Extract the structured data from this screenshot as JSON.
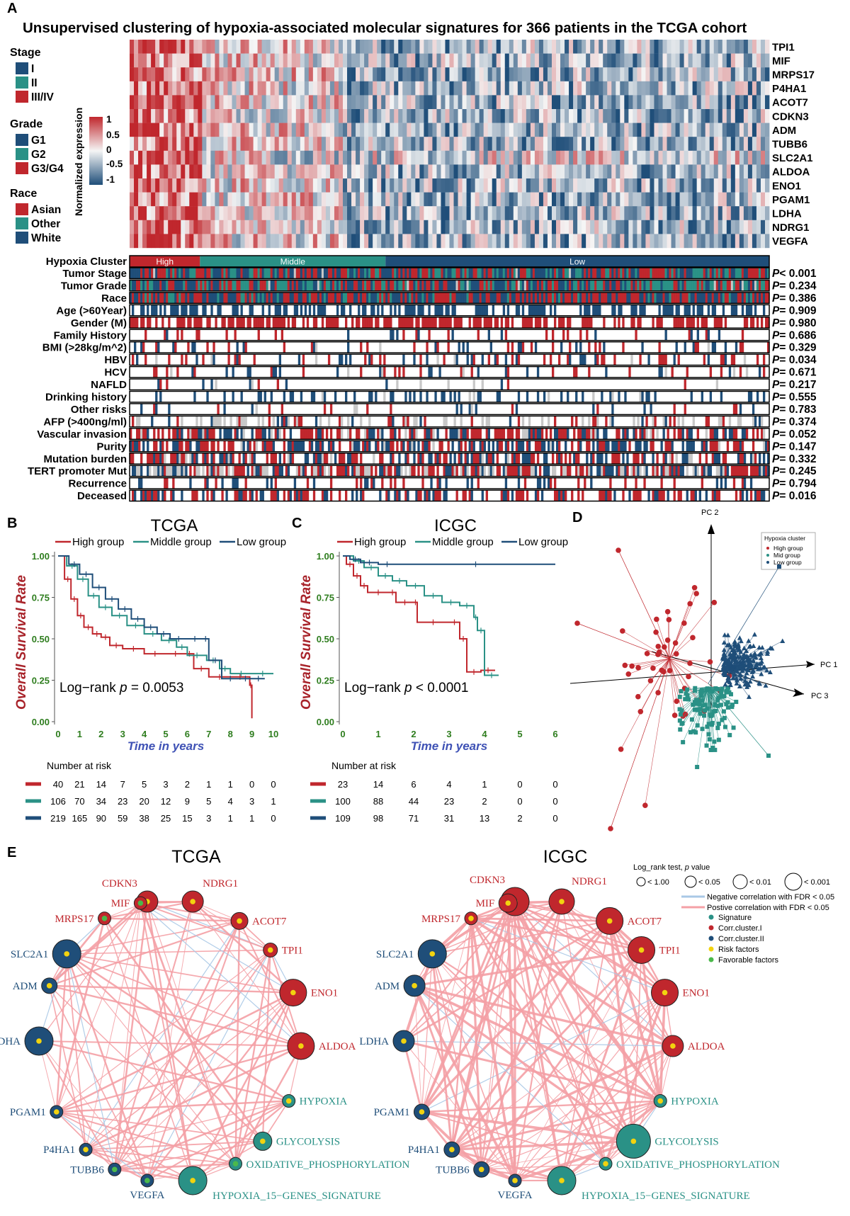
{
  "colors": {
    "red": "#c0272d",
    "teal": "#2a9186",
    "blue": "#1f4e79",
    "gray": "#c8c8c8",
    "pink": "#f4a0a6",
    "lightblue": "#a9c8e6",
    "yellow": "#f2d30f",
    "green": "#4bb94b",
    "dgreen": "#2e7d1e",
    "purple": "#4a4ab0"
  },
  "panel_a": {
    "letter": "A",
    "title": "Unsupervised clustering of  hypoxia-associated molecular signatures for 366 patients in the TCGA cohort",
    "genes": [
      "TPI1",
      "MIF",
      "MRPS17",
      "P4HA1",
      "ACOT7",
      "CDKN3",
      "ADM",
      "TUBB6",
      "SLC2A1",
      "ALDOA",
      "ENO1",
      "PGAM1",
      "LDHA",
      "NDRG1",
      "VEGFA"
    ],
    "legend_stage": {
      "title": "Stage",
      "items": [
        "I",
        "II",
        "III/IV"
      ]
    },
    "legend_grade": {
      "title": "Grade",
      "items": [
        "G1",
        "G2",
        "G3/G4"
      ]
    },
    "legend_race": {
      "title": "Race",
      "items": [
        "Asian",
        "Other",
        "White"
      ]
    },
    "colorbar": {
      "label": "Normalized expression",
      "ticks": [
        "1",
        "0.5",
        "0",
        "-0.5",
        "-1"
      ]
    },
    "cluster_row": {
      "label": "Hypoxia Cluster",
      "segments": [
        "High",
        "Middle",
        "Low"
      ],
      "fractions": [
        0.11,
        0.29,
        0.6
      ]
    },
    "clinical_rows": [
      {
        "label": "Tumor Stage",
        "p_prefix": "P",
        "p_value": "< 0.001"
      },
      {
        "label": "Tumor Grade",
        "p_prefix": "P",
        "p_value": "= 0.234"
      },
      {
        "label": "Race",
        "p_prefix": "P",
        "p_value": "= 0.386"
      },
      {
        "label": "Age (>60Year)",
        "p_prefix": "P",
        "p_value": "= 0.909"
      },
      {
        "label": "Gender (M)",
        "p_prefix": "P",
        "p_value": "= 0.980"
      },
      {
        "label": "Family History",
        "p_prefix": "P",
        "p_value": "= 0.686"
      },
      {
        "label": "BMI (>28kg/m^2)",
        "p_prefix": "P",
        "p_value": "= 0.329"
      },
      {
        "label": "HBV",
        "p_prefix": "P",
        "p_value": "= 0.034"
      },
      {
        "label": "HCV",
        "p_prefix": "P",
        "p_value": "= 0.671"
      },
      {
        "label": "NAFLD",
        "p_prefix": "P",
        "p_value": "= 0.217"
      },
      {
        "label": "Drinking history",
        "p_prefix": "P",
        "p_value": "= 0.555"
      },
      {
        "label": "Other risks",
        "p_prefix": "P",
        "p_value": "= 0.783"
      },
      {
        "label": "AFP (>400ng/ml)",
        "p_prefix": "P",
        "p_value": "= 0.374"
      },
      {
        "label": "Vascular invasion",
        "p_prefix": "P",
        "p_value": "= 0.052"
      },
      {
        "label": "Purity",
        "p_prefix": "P",
        "p_value": "= 0.147"
      },
      {
        "label": "Mutation burden",
        "p_prefix": "P",
        "p_value": "= 0.332"
      },
      {
        "label": "TERT promoter Mut",
        "p_prefix": "P",
        "p_value": "= 0.245"
      },
      {
        "label": "Recurrence",
        "p_prefix": "P",
        "p_value": "= 0.794"
      },
      {
        "label": "Deceased",
        "p_prefix": "P",
        "p_value": "= 0.016"
      }
    ]
  },
  "chart_data": [
    {
      "type": "heatmap",
      "panel": "A",
      "title": "Unsupervised clustering of  hypoxia-associated molecular signatures for 366 patients in the TCGA cohort",
      "rows": [
        "TPI1",
        "MIF",
        "MRPS17",
        "P4HA1",
        "ACOT7",
        "CDKN3",
        "ADM",
        "TUBB6",
        "SLC2A1",
        "ALDOA",
        "ENO1",
        "PGAM1",
        "LDHA",
        "NDRG1",
        "VEGFA"
      ],
      "n_patients": 366,
      "value_range": [
        -1,
        1
      ],
      "clusters": [
        "High",
        "Middle",
        "Low"
      ]
    },
    {
      "type": "line",
      "panel": "B",
      "subtype": "kaplan-meier",
      "title": "TCGA",
      "xlabel": "Time in years",
      "ylabel": "Overall Survival Rate",
      "xlim": [
        0,
        10
      ],
      "ylim": [
        0,
        1
      ],
      "xticks": [
        "0",
        "1",
        "2",
        "3",
        "4",
        "5",
        "6",
        "7",
        "8",
        "9",
        "10"
      ],
      "yticks": [
        "0.00",
        "0.25",
        "0.50",
        "0.75",
        "1.00"
      ],
      "legend": [
        "High group",
        "Middle group",
        "Low group"
      ],
      "annotation_pre": "Log−rank ",
      "annotation_p": "p",
      "annotation_post": " = 0.0053",
      "series": [
        {
          "name": "High group",
          "x": [
            0,
            0.3,
            0.6,
            0.9,
            1.2,
            1.6,
            2.0,
            2.4,
            3.0,
            4.0,
            5.0,
            5.9,
            6.3,
            7.0,
            8.0,
            8.9,
            9.0
          ],
          "y": [
            1.0,
            0.86,
            0.74,
            0.64,
            0.57,
            0.53,
            0.51,
            0.46,
            0.44,
            0.41,
            0.41,
            0.41,
            0.32,
            0.27,
            0.27,
            0.22,
            0.02
          ]
        },
        {
          "name": "Middle group",
          "x": [
            0,
            0.4,
            0.9,
            1.4,
            1.9,
            2.5,
            3.2,
            4.0,
            4.8,
            5.5,
            6.0,
            6.9,
            7.5,
            8.0,
            9.0,
            10.0
          ],
          "y": [
            1.0,
            0.94,
            0.86,
            0.76,
            0.69,
            0.64,
            0.58,
            0.53,
            0.49,
            0.45,
            0.4,
            0.37,
            0.32,
            0.29,
            0.29,
            0.29
          ]
        },
        {
          "name": "Low group",
          "x": [
            0,
            0.5,
            1.0,
            1.6,
            2.2,
            2.8,
            3.4,
            4.0,
            4.6,
            5.2,
            6.0,
            6.7,
            7.0,
            7.6,
            8.4,
            9.0,
            9.6
          ],
          "y": [
            1.0,
            0.95,
            0.89,
            0.81,
            0.74,
            0.68,
            0.62,
            0.57,
            0.53,
            0.5,
            0.5,
            0.5,
            0.37,
            0.26,
            0.26,
            0.26,
            0.26
          ]
        }
      ],
      "risk_table": {
        "title": "Number at risk",
        "rows": [
          [
            "40",
            "21",
            "14",
            "7",
            "5",
            "3",
            "2",
            "1",
            "1",
            "0",
            "0"
          ],
          [
            "106",
            "70",
            "34",
            "23",
            "20",
            "12",
            "9",
            "5",
            "4",
            "3",
            "1"
          ],
          [
            "219",
            "165",
            "90",
            "59",
            "38",
            "25",
            "15",
            "3",
            "1",
            "1",
            "0"
          ]
        ]
      }
    },
    {
      "type": "line",
      "panel": "C",
      "subtype": "kaplan-meier",
      "title": "ICGC",
      "xlabel": "Time in years",
      "ylabel": "Overall Survival Rate",
      "xlim": [
        0,
        6
      ],
      "ylim": [
        0,
        1
      ],
      "xticks": [
        "0",
        "1",
        "2",
        "3",
        "4",
        "5",
        "6"
      ],
      "yticks": [
        "0.00",
        "0.25",
        "0.50",
        "0.75",
        "1.00"
      ],
      "legend": [
        "High group",
        "Middle group",
        "Low group"
      ],
      "annotation_pre": "Log−rank ",
      "annotation_p": "p",
      "annotation_post": " < 0.0001",
      "series": [
        {
          "name": "High group",
          "x": [
            0,
            0.1,
            0.3,
            0.5,
            0.7,
            1.3,
            1.5,
            2.0,
            2.1,
            3.0,
            3.3,
            3.5,
            3.9,
            4.3
          ],
          "y": [
            1.0,
            0.95,
            0.88,
            0.82,
            0.78,
            0.78,
            0.72,
            0.72,
            0.6,
            0.6,
            0.5,
            0.3,
            0.31,
            0.31
          ]
        },
        {
          "name": "Middle group",
          "x": [
            0,
            0.3,
            0.6,
            1.0,
            1.4,
            1.8,
            2.3,
            2.8,
            3.3,
            3.7,
            3.8,
            4.0,
            4.4
          ],
          "y": [
            1.0,
            0.97,
            0.93,
            0.88,
            0.85,
            0.82,
            0.76,
            0.72,
            0.7,
            0.63,
            0.55,
            0.28,
            0.28
          ]
        },
        {
          "name": "Low group",
          "x": [
            0,
            0.2,
            0.5,
            1.0,
            1.5,
            6.0
          ],
          "y": [
            1.0,
            0.98,
            0.96,
            0.95,
            0.95,
            0.95
          ]
        }
      ],
      "risk_table": {
        "title": "Number at risk",
        "rows": [
          [
            "23",
            "14",
            "6",
            "4",
            "1",
            "0",
            "0"
          ],
          [
            "100",
            "88",
            "44",
            "23",
            "2",
            "0",
            "0"
          ],
          [
            "109",
            "98",
            "71",
            "31",
            "13",
            "2",
            "0"
          ]
        ]
      }
    },
    {
      "type": "scatter",
      "panel": "D",
      "subtype": "pca-biplot",
      "axes": [
        "PC 1",
        "PC 2",
        "PC 3"
      ],
      "legend_title": "Hypoxia cluster",
      "legend": [
        "High group",
        "Mid group",
        "Low group"
      ]
    },
    {
      "type": "network",
      "panel": "E",
      "networks": [
        "TCGA",
        "ICGC"
      ],
      "nodes": [
        "CDKN3",
        "NDRG1",
        "ACOT7",
        "TPI1",
        "ENO1",
        "ALDOA",
        "HYPOXIA",
        "GLYCOLYSIS",
        "OXIDATIVE_PHOSPHORYLATION",
        "HYPOXIA_15−GENES_SIGNATURE",
        "VEGFA",
        "TUBB6",
        "P4HA1",
        "PGAM1",
        "LDHA",
        "ADM",
        "SLC2A1",
        "MRPS17",
        "MIF"
      ]
    }
  ],
  "panel_b": {
    "letter": "B"
  },
  "panel_c": {
    "letter": "C"
  },
  "panel_d": {
    "letter": "D",
    "pc1": "PC 1",
    "pc2": "PC 2",
    "pc3": "PC 3",
    "legend_title": "Hypoxia cluster",
    "legend": [
      "High group",
      "Mid group",
      "Low group"
    ]
  },
  "panel_e": {
    "letter": "E",
    "tcga": {
      "title": "TCGA",
      "nodes": [
        {
          "name": "CDKN3",
          "group": "red",
          "size": 15
        },
        {
          "name": "NDRG1",
          "group": "red",
          "size": 15
        },
        {
          "name": "ACOT7",
          "group": "red",
          "size": 12
        },
        {
          "name": "TPI1",
          "group": "red",
          "size": 10
        },
        {
          "name": "ENO1",
          "group": "red",
          "size": 19
        },
        {
          "name": "ALDOA",
          "group": "red",
          "size": 19
        },
        {
          "name": "HYPOXIA",
          "group": "teal",
          "size": 9
        },
        {
          "name": "GLYCOLYSIS",
          "group": "teal",
          "size": 13
        },
        {
          "name": "OXIDATIVE_PHOSPHORYLATION",
          "group": "teal",
          "size": 9
        },
        {
          "name": "HYPOXIA_15−GENES_SIGNATURE",
          "group": "teal",
          "size": 20
        },
        {
          "name": "VEGFA",
          "group": "blue",
          "size": 9
        },
        {
          "name": "TUBB6",
          "group": "blue",
          "size": 9
        },
        {
          "name": "P4HA1",
          "group": "blue",
          "size": 9
        },
        {
          "name": "PGAM1",
          "group": "blue",
          "size": 9
        },
        {
          "name": "LDHA",
          "group": "blue",
          "size": 20
        },
        {
          "name": "ADM",
          "group": "blue",
          "size": 11
        },
        {
          "name": "SLC2A1",
          "group": "blue",
          "size": 20
        },
        {
          "name": "MRPS17",
          "group": "red",
          "size": 9
        },
        {
          "name": "MIF",
          "group": "red",
          "size": 9
        }
      ]
    },
    "icgc": {
      "title": "ICGC",
      "nodes": [
        {
          "name": "CDKN3",
          "group": "red",
          "size": 20
        },
        {
          "name": "NDRG1",
          "group": "red",
          "size": 18
        },
        {
          "name": "ACOT7",
          "group": "red",
          "size": 19
        },
        {
          "name": "TPI1",
          "group": "red",
          "size": 19
        },
        {
          "name": "ENO1",
          "group": "red",
          "size": 19
        },
        {
          "name": "ALDOA",
          "group": "red",
          "size": 15
        },
        {
          "name": "HYPOXIA",
          "group": "teal",
          "size": 9
        },
        {
          "name": "GLYCOLYSIS",
          "group": "teal",
          "size": 24
        },
        {
          "name": "OXIDATIVE_PHOSPHORYLATION",
          "group": "teal",
          "size": 9
        },
        {
          "name": "HYPOXIA_15−GENES_SIGNATURE",
          "group": "teal",
          "size": 20
        },
        {
          "name": "VEGFA",
          "group": "blue",
          "size": 9
        },
        {
          "name": "TUBB6",
          "group": "blue",
          "size": 11
        },
        {
          "name": "P4HA1",
          "group": "blue",
          "size": 11
        },
        {
          "name": "PGAM1",
          "group": "blue",
          "size": 11
        },
        {
          "name": "LDHA",
          "group": "blue",
          "size": 15
        },
        {
          "name": "ADM",
          "group": "blue",
          "size": 15
        },
        {
          "name": "SLC2A1",
          "group": "blue",
          "size": 20
        },
        {
          "name": "MRPS17",
          "group": "red",
          "size": 9
        },
        {
          "name": "MIF",
          "group": "red",
          "size": 13
        }
      ]
    },
    "legend": {
      "title_pre": "Log_rank test, ",
      "title_p": "p",
      "title_post": " value",
      "sizes": [
        "< 1.00",
        "< 0.05",
        "< 0.01",
        "< 0.001"
      ],
      "lines": [
        "Negative correlation with FDR < 0.05",
        "Postive correlation with FDR < 0.05"
      ],
      "dots": [
        "Signature",
        "Corr.cluster.I",
        "Corr.cluster.II",
        "Risk factors",
        "Favorable factors"
      ]
    }
  }
}
